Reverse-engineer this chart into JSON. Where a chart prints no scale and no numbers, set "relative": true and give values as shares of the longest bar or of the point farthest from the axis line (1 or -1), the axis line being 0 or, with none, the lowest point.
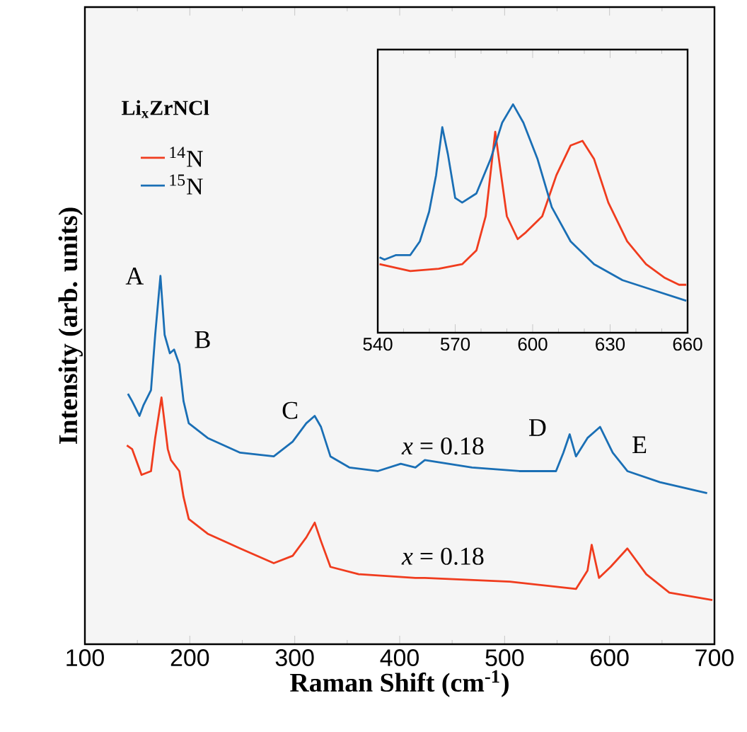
{
  "chart_data": [
    {
      "type": "line",
      "xlabel": "Raman Shift (cm$^{-1}$)",
      "ylabel": "Intensity (arb. units)",
      "xlim": [
        100,
        700
      ],
      "xticks": [
        100,
        200,
        300,
        400,
        500,
        600,
        700
      ],
      "relative": true,
      "tick_labels": "x",
      "legend": "top left",
      "series": [
        {
          "name": "$^{14}$N",
          "color": "#f03c1e",
          "x": [
            140,
            145,
            154,
            163,
            167,
            173,
            179,
            182,
            190,
            194,
            199,
            217,
            248,
            280,
            298,
            311,
            319,
            325,
            334,
            361,
            415,
            424,
            505,
            568,
            579,
            583,
            590,
            601,
            617,
            635,
            657,
            698
          ],
          "values": [
            0.54,
            0.53,
            0.46,
            0.47,
            0.56,
            0.67,
            0.53,
            0.5,
            0.47,
            0.4,
            0.34,
            0.3,
            0.26,
            0.22,
            0.24,
            0.29,
            0.33,
            0.28,
            0.21,
            0.19,
            0.18,
            0.18,
            0.17,
            0.15,
            0.2,
            0.27,
            0.18,
            0.21,
            0.26,
            0.19,
            0.14,
            0.12
          ]
        },
        {
          "name": "$^{15}$N",
          "color": "#1a6fb5",
          "x": [
            141,
            145,
            152,
            156,
            163,
            167,
            172,
            176,
            181,
            185,
            190,
            194,
            199,
            217,
            248,
            280,
            298,
            311,
            319,
            325,
            334,
            352,
            379,
            401,
            415,
            424,
            469,
            514,
            549,
            556,
            562,
            568,
            579,
            591,
            603,
            617,
            648,
            693
          ],
          "values": [
            0.68,
            0.66,
            0.62,
            0.65,
            0.69,
            0.84,
            1.0,
            0.84,
            0.79,
            0.8,
            0.76,
            0.66,
            0.6,
            0.56,
            0.52,
            0.51,
            0.55,
            0.6,
            0.62,
            0.59,
            0.51,
            0.48,
            0.47,
            0.49,
            0.48,
            0.5,
            0.48,
            0.47,
            0.47,
            0.52,
            0.57,
            0.51,
            0.56,
            0.59,
            0.52,
            0.47,
            0.44,
            0.41
          ]
        }
      ],
      "annotations": [
        "**Li$_{x}$ZrNCl**",
        "A",
        "B",
        "C",
        "D",
        "E",
        "*x* = 0.18",
        "*x* = 0.18"
      ]
    },
    {
      "type": "line",
      "xlim": [
        540,
        660
      ],
      "xticks": [
        540,
        570,
        600,
        630,
        660
      ],
      "relative": true,
      "tick_labels": "x",
      "series": [
        {
          "color": "#f03c1e",
          "x": [
            540.7,
            552.6,
            563.6,
            572.7,
            578.2,
            581.8,
            584,
            585.5,
            587.3,
            590,
            594.2,
            597.4,
            603.7,
            609.2,
            614.7,
            619.3,
            623.8,
            629.3,
            636.6,
            643.9,
            651.2,
            656.7,
            659.5
          ],
          "values": [
            0.3,
            0.27,
            0.28,
            0.3,
            0.36,
            0.51,
            0.73,
            0.88,
            0.73,
            0.51,
            0.41,
            0.44,
            0.51,
            0.69,
            0.82,
            0.84,
            0.76,
            0.57,
            0.4,
            0.3,
            0.24,
            0.21,
            0.21
          ]
        },
        {
          "color": "#1a6fb5",
          "x": [
            540.7,
            542.6,
            547.1,
            552.6,
            556.3,
            559.9,
            562.6,
            565,
            567.2,
            570,
            572.7,
            578.2,
            583.7,
            588.2,
            592.4,
            596.4,
            601.9,
            607.4,
            614.7,
            623.8,
            634.8,
            645.8,
            659.5
          ],
          "values": [
            0.33,
            0.32,
            0.34,
            0.34,
            0.4,
            0.53,
            0.69,
            0.9,
            0.78,
            0.59,
            0.57,
            0.61,
            0.76,
            0.92,
            1.0,
            0.92,
            0.76,
            0.55,
            0.4,
            0.3,
            0.23,
            0.19,
            0.14
          ]
        }
      ]
    }
  ]
}
